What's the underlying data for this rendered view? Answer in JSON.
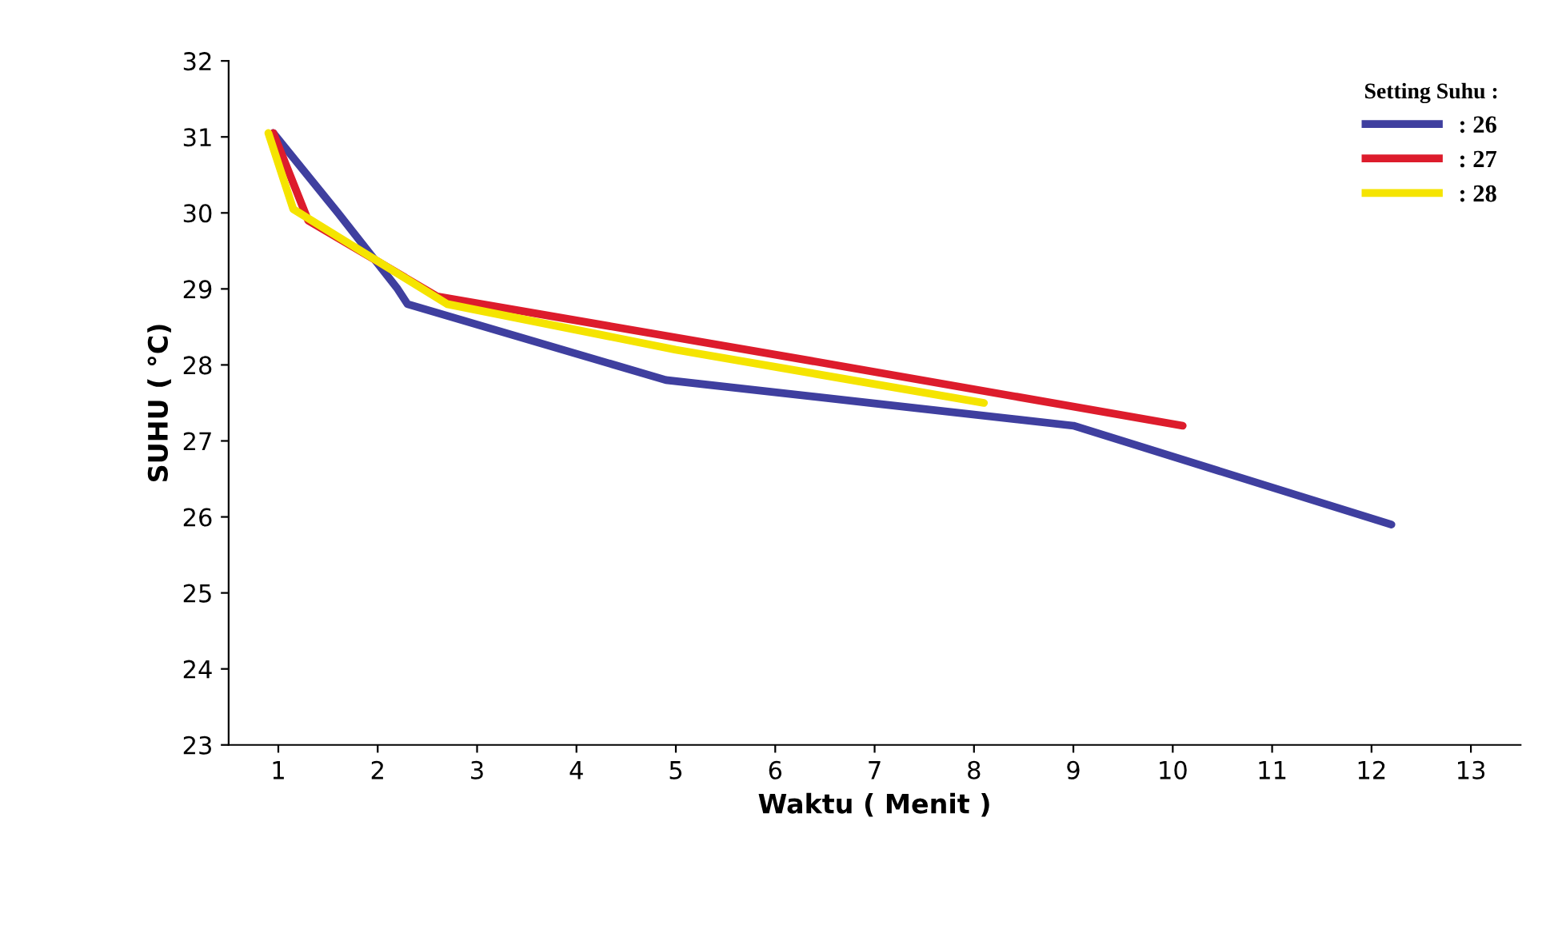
{
  "chart_data": {
    "type": "line",
    "xlabel": "Waktu ( Menit )",
    "ylabel": "SUHU ( °C)",
    "legend_title": "Setting Suhu :",
    "xlim": [
      0.5,
      13.5
    ],
    "xticks": [
      1,
      2,
      3,
      4,
      5,
      6,
      7,
      8,
      9,
      10,
      11,
      12,
      13
    ],
    "ylim": [
      23,
      32
    ],
    "yticks": [
      23,
      24,
      25,
      26,
      27,
      28,
      29,
      30,
      31,
      32
    ],
    "grid": false,
    "legend": "top right",
    "marker": "none",
    "line_style": "solid",
    "series": [
      {
        "name": ": 26",
        "color": "#3f3f9f",
        "x": [
          0.95,
          1.6,
          2.2,
          2.3,
          4.9,
          9.0,
          12.2
        ],
        "values": [
          31.05,
          30.0,
          29.0,
          28.8,
          27.8,
          27.2,
          25.9
        ]
      },
      {
        "name": ": 27",
        "color": "#dd1c2c",
        "x": [
          0.95,
          1.3,
          2.6,
          6.6,
          10.1
        ],
        "values": [
          31.05,
          29.9,
          28.9,
          28.0,
          27.2
        ]
      },
      {
        "name": ": 28",
        "color": "#f5e400",
        "x": [
          0.9,
          1.15,
          2.7,
          5.0,
          8.1
        ],
        "values": [
          31.05,
          30.05,
          28.8,
          28.2,
          27.5
        ]
      }
    ]
  }
}
